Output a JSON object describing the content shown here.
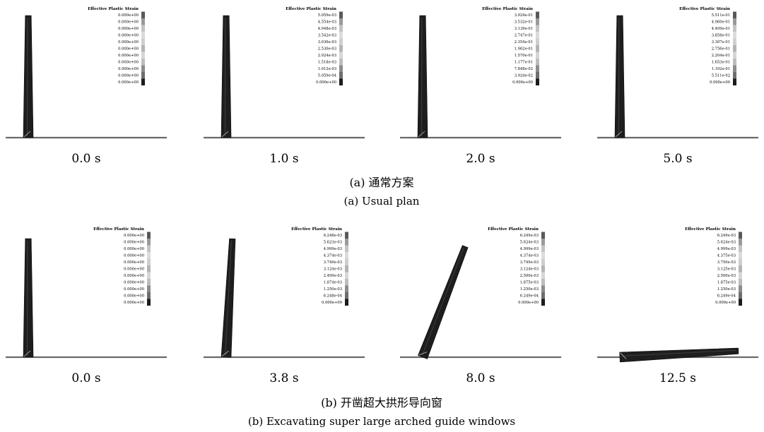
{
  "figure": {
    "legend_title": "Effective Plastic Strain",
    "legend_gray_levels": [
      "#595959",
      "#9a9a9a",
      "#c4c4c4",
      "#dcdcdc",
      "#cfcfcf",
      "#b4b4b4",
      "#d6d6d6",
      "#bdbdbd",
      "#8c8c8c",
      "#6e6e6e",
      "#1c1c1c"
    ],
    "rows": [
      {
        "caption_cn": "(a) 通常方案",
        "caption_en": "(a) Usual plan",
        "panels": [
          {
            "time": "0.0 s",
            "tilt_deg": 0,
            "legend_values": [
              "0.000e+00",
              "0.000e+00",
              "0.000e+00",
              "0.000e+00",
              "0.000e+00",
              "0.000e+00",
              "0.000e+00",
              "0.000e+00",
              "0.000e+00",
              "0.000e+00",
              "0.000e+00"
            ]
          },
          {
            "time": "1.0 s",
            "tilt_deg": 0,
            "legend_values": [
              "5.059e-03",
              "4.554e-03",
              "4.048e-03",
              "3.542e-03",
              "3.036e-03",
              "2.530e-03",
              "2.024e-03",
              "1.518e-03",
              "1.012e-03",
              "5.059e-04",
              "0.000e+00"
            ]
          },
          {
            "time": "2.0 s",
            "tilt_deg": 0,
            "legend_values": [
              "3.924e-01",
              "3.532e-01",
              "3.139e-01",
              "2.747e-01",
              "2.354e-01",
              "1.962e-01",
              "1.570e-01",
              "1.177e-01",
              "7.848e-02",
              "3.924e-02",
              "0.000e+00"
            ]
          },
          {
            "time": "5.0 s",
            "tilt_deg": 0,
            "legend_values": [
              "5.511e-01",
              "4.960e-01",
              "4.409e-01",
              "3.858e-01",
              "3.307e-01",
              "2.756e-01",
              "2.204e-01",
              "1.653e-01",
              "1.102e-01",
              "5.511e-02",
              "0.000e+00"
            ]
          }
        ]
      },
      {
        "caption_cn": "(b) 开凿超大拱形导向窗",
        "caption_en": "(b) Excavating super large arched guide windows",
        "panels": [
          {
            "time": "0.0 s",
            "tilt_deg": 0,
            "legend_values": [
              "0.000e+00",
              "0.000e+00",
              "0.000e+00",
              "0.000e+00",
              "0.000e+00",
              "0.000e+00",
              "0.000e+00",
              "0.000e+00",
              "0.000e+00",
              "0.000e+00",
              "0.000e+00"
            ]
          },
          {
            "time": "3.8 s",
            "tilt_deg": 3,
            "legend_values": [
              "6.248e-03",
              "5.623e-03",
              "4.999e-03",
              "4.374e-03",
              "3.749e-03",
              "3.124e-03",
              "2.499e-03",
              "1.874e-03",
              "1.250e-03",
              "6.248e-04",
              "0.000e+00"
            ]
          },
          {
            "time": "8.0 s",
            "tilt_deg": 21,
            "legend_values": [
              "6.249e-03",
              "5.624e-03",
              "4.999e-03",
              "4.374e-03",
              "3.749e-03",
              "3.124e-03",
              "2.500e-03",
              "1.875e-03",
              "1.250e-03",
              "6.249e-04",
              "0.000e+00"
            ]
          },
          {
            "time": "12.5 s",
            "tilt_deg": 87,
            "legend_values": [
              "6.249e-03",
              "5.624e-03",
              "4.999e-03",
              "4.375e-03",
              "3.750e-03",
              "3.125e-03",
              "2.500e-03",
              "1.875e-03",
              "1.250e-03",
              "6.249e-04",
              "0.000e+00"
            ]
          }
        ]
      }
    ]
  }
}
